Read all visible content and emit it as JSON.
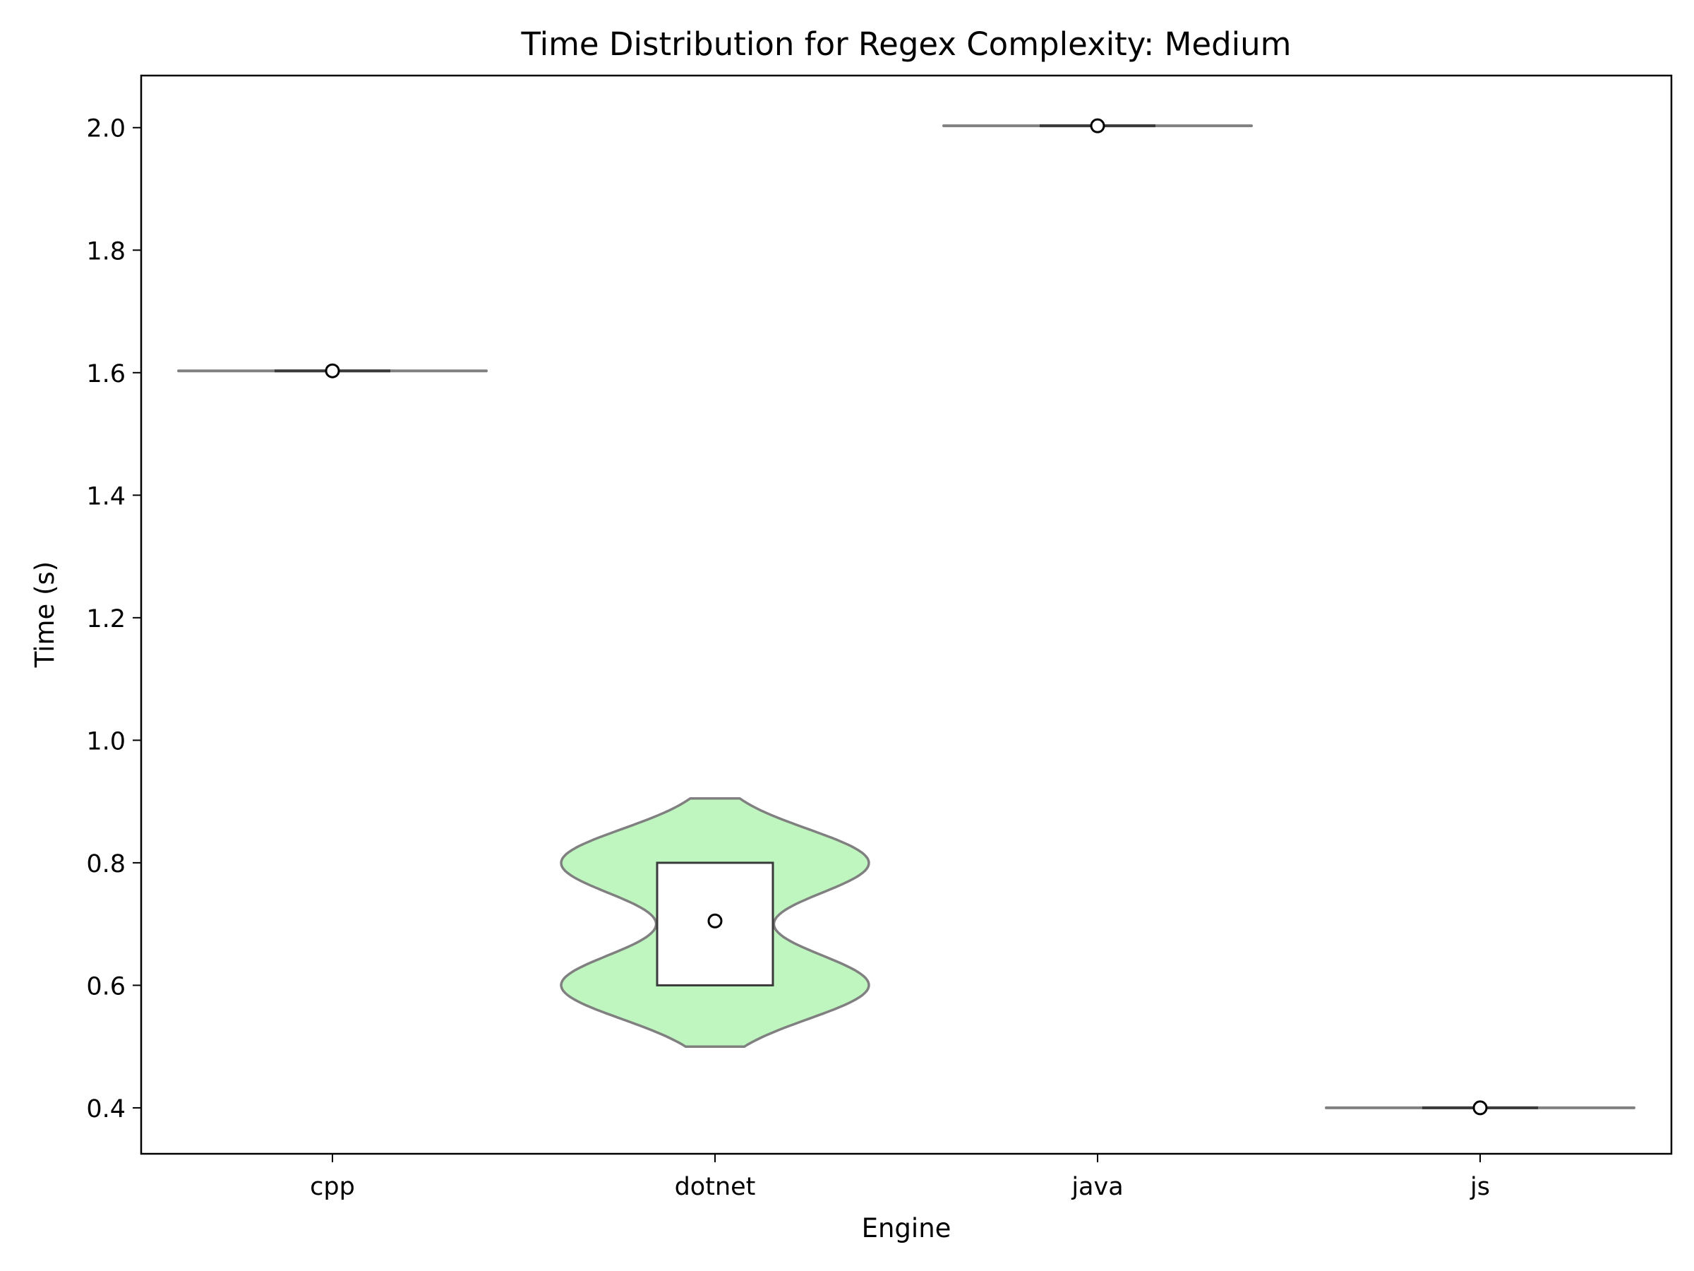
{
  "chart_data": {
    "type": "violin",
    "title": "Time Distribution for Regex Complexity: Medium",
    "xlabel": "Engine",
    "ylabel": "Time (s)",
    "categories": [
      "cpp",
      "dotnet",
      "java",
      "js"
    ],
    "ylim": [
      0.325,
      2.085
    ],
    "yticks": [
      0.4,
      0.6,
      0.8,
      1.0,
      1.2,
      1.4,
      1.6,
      1.8,
      2.0
    ],
    "ytick_labels": [
      "0.4",
      "0.6",
      "0.8",
      "1.0",
      "1.2",
      "1.4",
      "1.6",
      "1.8",
      "2.0"
    ],
    "grid": false,
    "violin_color": "#bff5bf",
    "violin_edge_color": "#808080",
    "series": [
      {
        "category": "cpp",
        "min": 1.603,
        "q1": 1.603,
        "median": 1.603,
        "q3": 1.603,
        "max": 1.603,
        "mean": 1.603,
        "shape": "flat"
      },
      {
        "category": "dotnet",
        "min": 0.5,
        "q1": 0.6,
        "median": 0.8,
        "q3": 0.8,
        "max": 0.905,
        "mean": 0.705,
        "shape": "bimodal",
        "modes": [
          0.6,
          0.8
        ]
      },
      {
        "category": "java",
        "min": 2.003,
        "q1": 2.003,
        "median": 2.003,
        "q3": 2.003,
        "max": 2.003,
        "mean": 2.003,
        "shape": "flat"
      },
      {
        "category": "js",
        "min": 0.4,
        "q1": 0.4,
        "median": 0.4,
        "q3": 0.4,
        "max": 0.4,
        "mean": 0.4,
        "shape": "flat"
      }
    ]
  }
}
